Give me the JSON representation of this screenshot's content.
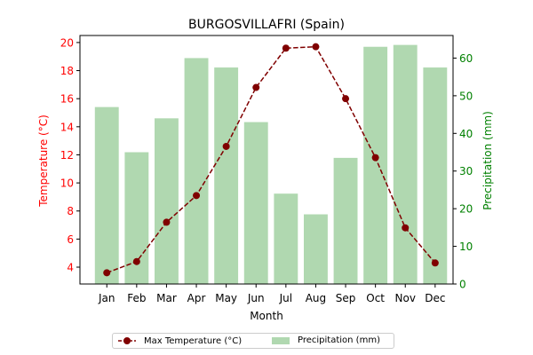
{
  "chart_data": {
    "type": "bar+line",
    "title": "BURGOSVILLAFRI (Spain)",
    "xlabel": "Month",
    "categories": [
      "Jan",
      "Feb",
      "Mar",
      "Apr",
      "May",
      "Jun",
      "Jul",
      "Aug",
      "Sep",
      "Oct",
      "Nov",
      "Dec"
    ],
    "left_axis": {
      "label": "Temperature (°C)",
      "ylim": [
        2.8,
        20.5
      ],
      "ticks": [
        4,
        6,
        8,
        10,
        12,
        14,
        16,
        18,
        20
      ],
      "color": "#ff0000"
    },
    "right_axis": {
      "label": "Precipitation (mm)",
      "ylim": [
        0,
        66
      ],
      "ticks": [
        0,
        10,
        20,
        30,
        40,
        50,
        60
      ],
      "color": "#008000"
    },
    "series": [
      {
        "name": "Max Temperature (°C)",
        "type": "line",
        "axis": "left",
        "color": "#800000",
        "values": [
          3.6,
          4.4,
          7.2,
          9.1,
          12.6,
          16.8,
          19.6,
          19.7,
          16.0,
          11.8,
          6.8,
          4.3
        ]
      },
      {
        "name": "Precipitation (mm)",
        "type": "bar",
        "axis": "right",
        "color": "#b0d8b0",
        "values": [
          47.0,
          35.0,
          44.0,
          60.0,
          57.5,
          43.0,
          24.0,
          18.5,
          33.5,
          63.0,
          63.5,
          57.5
        ]
      }
    ],
    "grid": false,
    "legend_position": "bottom-center"
  }
}
